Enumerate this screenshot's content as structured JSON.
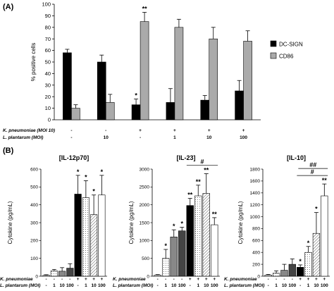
{
  "panel_labels": {
    "a": "(A)",
    "b": "(B)"
  },
  "chart_data": [
    {
      "type": "bar",
      "panel": "(A)",
      "ylabel": "% positive cells",
      "ylim": [
        0,
        100
      ],
      "yticks": [
        0,
        10,
        20,
        30,
        40,
        50,
        60,
        70,
        80,
        90,
        100
      ],
      "grid": false,
      "legend_position": "right",
      "series": [
        {
          "name": "DC-SIGN",
          "color": "#000000",
          "values": [
            58,
            50,
            13,
            15,
            17,
            25
          ],
          "errors": [
            3,
            6,
            5,
            12,
            4,
            9
          ]
        },
        {
          "name": "CD86",
          "color": "#aaaaaa",
          "values": [
            10,
            15,
            85,
            80,
            70,
            68
          ],
          "errors": [
            3,
            7,
            8,
            7,
            10,
            9
          ]
        }
      ],
      "condition_rows": [
        {
          "label": "K. pneumoniae (MOI 10)",
          "values": [
            "-",
            "-",
            "+",
            "+",
            "+",
            "+"
          ]
        },
        {
          "label": "L. plantarum (MOI)",
          "values": [
            "-",
            "10",
            "-",
            "1",
            "10",
            "100"
          ]
        }
      ],
      "annotations": [
        {
          "series": "DC-SIGN",
          "index": 2,
          "text": "*"
        },
        {
          "series": "CD86",
          "index": 2,
          "text": "**"
        }
      ]
    },
    {
      "type": "bar",
      "panel": "(B)",
      "title": "[IL-12p70]",
      "ylabel": "Cytokine  (pg/mL)",
      "ylim": [
        0,
        600
      ],
      "yticks": [
        0,
        100,
        200,
        300,
        400,
        500,
        600
      ],
      "values": [
        5,
        30,
        28,
        45,
        460,
        440,
        345,
        455
      ],
      "errors": [
        3,
        8,
        20,
        25,
        105,
        95,
        110,
        110
      ],
      "fills": [
        "#ffffff",
        "#ffffff",
        "#888888",
        "#444444",
        "#000000",
        "#ffffff",
        "#ffffff",
        "#ffffff"
      ],
      "patterns": [
        "solid",
        "dots",
        "solid",
        "solid",
        "solid",
        "dots",
        "hatch",
        "solid"
      ],
      "stars": [
        "",
        "",
        "",
        "",
        "*",
        "*",
        "*",
        "*"
      ],
      "condition_rows": [
        {
          "label": "K. pneumoniae",
          "values": [
            "-",
            "-",
            "-",
            "-",
            "+",
            "+",
            "+",
            "+"
          ]
        },
        {
          "label": "L. plantarum (MOI)",
          "values": [
            "-",
            "1",
            "10",
            "100",
            "-",
            "1",
            "10",
            "100"
          ]
        }
      ]
    },
    {
      "type": "bar",
      "panel": "(B)",
      "title": "[IL-23]",
      "ylabel": "Cytokine  (pg/mL)",
      "ylim": [
        0,
        3000
      ],
      "yticks": [
        0,
        500,
        1000,
        1500,
        2000,
        2500,
        3000
      ],
      "values": [
        30,
        500,
        1100,
        1270,
        1980,
        2250,
        2320,
        1440
      ],
      "errors": [
        15,
        250,
        200,
        100,
        200,
        300,
        550,
        200
      ],
      "fills": [
        "#ffffff",
        "#ffffff",
        "#888888",
        "#444444",
        "#000000",
        "#ffffff",
        "#ffffff",
        "#ffffff"
      ],
      "patterns": [
        "solid",
        "dots",
        "solid",
        "solid",
        "solid",
        "dots",
        "hatch",
        "solid"
      ],
      "stars": [
        "",
        "*",
        "*",
        "*",
        "**",
        "**",
        "**",
        "**"
      ],
      "bracket": {
        "text": "#",
        "from_index": 4,
        "to_index": 7
      },
      "condition_rows": [
        {
          "label": "K. pneumoniae",
          "values": [
            "-",
            "-",
            "-",
            "-",
            "+",
            "+",
            "+",
            "+"
          ]
        },
        {
          "label": "L. plantarum (MOI)",
          "values": [
            "-",
            "1",
            "10",
            "100",
            "-",
            "1",
            "10",
            "100"
          ]
        }
      ]
    },
    {
      "type": "bar",
      "panel": "(B)",
      "title": "[IL-10]",
      "ylabel": "Cytokine  (pg/mL)",
      "ylim": [
        0,
        1800
      ],
      "yticks": [
        0,
        200,
        400,
        600,
        800,
        1000,
        1200,
        1400,
        1600,
        1800
      ],
      "values": [
        20,
        50,
        100,
        200,
        150,
        400,
        720,
        1350
      ],
      "errors": [
        10,
        40,
        100,
        90,
        40,
        100,
        350,
        200
      ],
      "fills": [
        "#ffffff",
        "#ffffff",
        "#888888",
        "#444444",
        "#000000",
        "#ffffff",
        "#ffffff",
        "#ffffff"
      ],
      "patterns": [
        "solid",
        "dots",
        "solid",
        "solid",
        "solid",
        "dots",
        "hatch",
        "solid"
      ],
      "stars": [
        "",
        "",
        "",
        "",
        "*",
        "*",
        "*",
        "**"
      ],
      "brackets": [
        {
          "text": "#",
          "from_index": 4,
          "to_index": 7,
          "level": 1
        },
        {
          "text": "##",
          "from_index": 4,
          "to_index": 7,
          "level": 2
        }
      ],
      "condition_rows": [
        {
          "label": "K. pneumoniae",
          "values": [
            "-",
            "-",
            "-",
            "-",
            "+",
            "+",
            "+",
            "+"
          ]
        },
        {
          "label": "L. plantarum (MOI)",
          "values": [
            "-",
            "1",
            "10",
            "100",
            "-",
            "1",
            "10",
            "100"
          ]
        }
      ]
    }
  ]
}
